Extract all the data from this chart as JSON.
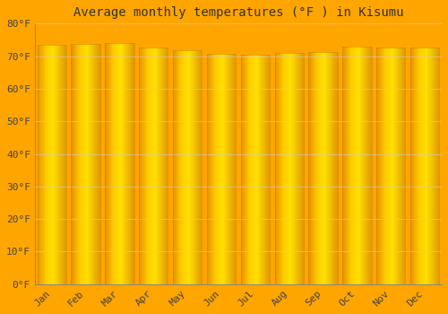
{
  "title": "Average monthly temperatures (°F ) in Kisumu",
  "categories": [
    "Jan",
    "Feb",
    "Mar",
    "Apr",
    "May",
    "Jun",
    "Jul",
    "Aug",
    "Sep",
    "Oct",
    "Nov",
    "Dec"
  ],
  "values": [
    73.4,
    73.8,
    73.9,
    72.7,
    71.8,
    70.7,
    70.5,
    70.9,
    71.4,
    72.9,
    72.7,
    72.7
  ],
  "ylim": [
    0,
    80
  ],
  "yticks": [
    0,
    10,
    20,
    30,
    40,
    50,
    60,
    70,
    80
  ],
  "ytick_labels": [
    "0°F",
    "10°F",
    "20°F",
    "30°F",
    "40°F",
    "50°F",
    "60°F",
    "70°F",
    "80°F"
  ],
  "bar_color_main": "#FFA500",
  "bar_color_light": "#FFD966",
  "bar_color_dark": "#E8920A",
  "background_color": "#FFA500",
  "plot_bg_color": "#FFA500",
  "grid_color": "#CCCCCC",
  "title_fontsize": 10,
  "tick_fontsize": 8,
  "bar_width": 0.85
}
